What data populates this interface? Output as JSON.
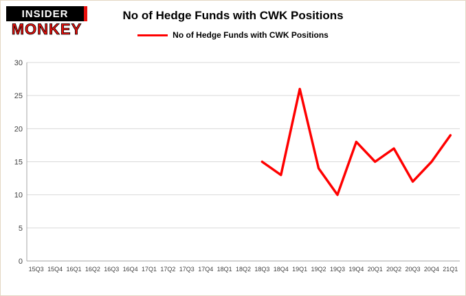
{
  "logo": {
    "line1": "INSIDER",
    "line2": "MONKEY"
  },
  "chart_data": {
    "type": "line",
    "title": "No of Hedge Funds with CWK Positions",
    "legend_entries": [
      "No of Hedge Funds with CWK Positions"
    ],
    "legend_position": "top",
    "grid": true,
    "xlabel": "",
    "ylabel": "",
    "ylim": [
      0,
      30
    ],
    "ytick_interval": 5,
    "categories": [
      "15Q3",
      "15Q4",
      "16Q1",
      "16Q2",
      "16Q3",
      "16Q4",
      "17Q1",
      "17Q2",
      "17Q3",
      "17Q4",
      "18Q1",
      "18Q2",
      "18Q3",
      "18Q4",
      "19Q1",
      "19Q2",
      "19Q3",
      "19Q4",
      "20Q1",
      "20Q2",
      "20Q3",
      "20Q4",
      "21Q1"
    ],
    "series": [
      {
        "name": "No of Hedge Funds with CWK Positions",
        "color": "#ff0000",
        "values": [
          null,
          null,
          null,
          null,
          null,
          null,
          null,
          null,
          null,
          null,
          null,
          null,
          15,
          13,
          26,
          14,
          10,
          18,
          15,
          17,
          12,
          15,
          19
        ]
      }
    ]
  },
  "colors": {
    "line": "#ff0000",
    "grid": "#d9d9d9",
    "axis": "#a6a6a6",
    "tick_text": "#404040"
  }
}
